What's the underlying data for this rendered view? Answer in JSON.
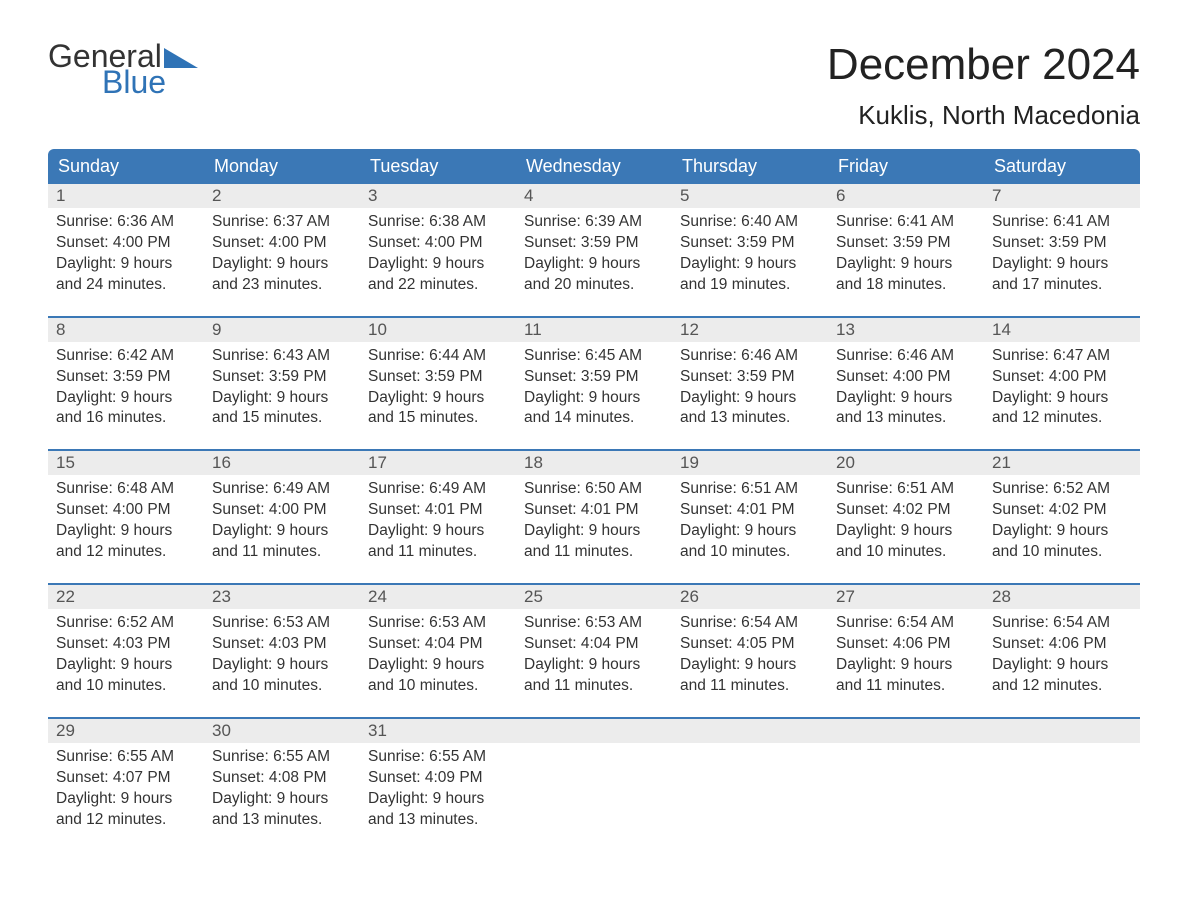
{
  "brand": {
    "word1": "General",
    "word2": "Blue",
    "accent_color": "#2f73b6"
  },
  "title": {
    "month": "December 2024",
    "location": "Kuklis, North Macedonia"
  },
  "colors": {
    "header_bg": "#3b78b6",
    "header_text": "#ffffff",
    "daynum_bg": "#ececec",
    "daynum_text": "#555555",
    "body_text": "#333333",
    "week_border": "#3b78b6",
    "background": "#ffffff"
  },
  "day_names": [
    "Sunday",
    "Monday",
    "Tuesday",
    "Wednesday",
    "Thursday",
    "Friday",
    "Saturday"
  ],
  "labels": {
    "sunrise": "Sunrise:",
    "sunset": "Sunset:",
    "daylight": "Daylight:"
  },
  "fonts": {
    "title_size_pt": 33,
    "location_size_pt": 20,
    "header_size_pt": 14,
    "body_size_pt": 12
  },
  "weeks": [
    [
      {
        "num": "1",
        "sunrise": "6:36 AM",
        "sunset": "4:00 PM",
        "daylight": "9 hours and 24 minutes."
      },
      {
        "num": "2",
        "sunrise": "6:37 AM",
        "sunset": "4:00 PM",
        "daylight": "9 hours and 23 minutes."
      },
      {
        "num": "3",
        "sunrise": "6:38 AM",
        "sunset": "4:00 PM",
        "daylight": "9 hours and 22 minutes."
      },
      {
        "num": "4",
        "sunrise": "6:39 AM",
        "sunset": "3:59 PM",
        "daylight": "9 hours and 20 minutes."
      },
      {
        "num": "5",
        "sunrise": "6:40 AM",
        "sunset": "3:59 PM",
        "daylight": "9 hours and 19 minutes."
      },
      {
        "num": "6",
        "sunrise": "6:41 AM",
        "sunset": "3:59 PM",
        "daylight": "9 hours and 18 minutes."
      },
      {
        "num": "7",
        "sunrise": "6:41 AM",
        "sunset": "3:59 PM",
        "daylight": "9 hours and 17 minutes."
      }
    ],
    [
      {
        "num": "8",
        "sunrise": "6:42 AM",
        "sunset": "3:59 PM",
        "daylight": "9 hours and 16 minutes."
      },
      {
        "num": "9",
        "sunrise": "6:43 AM",
        "sunset": "3:59 PM",
        "daylight": "9 hours and 15 minutes."
      },
      {
        "num": "10",
        "sunrise": "6:44 AM",
        "sunset": "3:59 PM",
        "daylight": "9 hours and 15 minutes."
      },
      {
        "num": "11",
        "sunrise": "6:45 AM",
        "sunset": "3:59 PM",
        "daylight": "9 hours and 14 minutes."
      },
      {
        "num": "12",
        "sunrise": "6:46 AM",
        "sunset": "3:59 PM",
        "daylight": "9 hours and 13 minutes."
      },
      {
        "num": "13",
        "sunrise": "6:46 AM",
        "sunset": "4:00 PM",
        "daylight": "9 hours and 13 minutes."
      },
      {
        "num": "14",
        "sunrise": "6:47 AM",
        "sunset": "4:00 PM",
        "daylight": "9 hours and 12 minutes."
      }
    ],
    [
      {
        "num": "15",
        "sunrise": "6:48 AM",
        "sunset": "4:00 PM",
        "daylight": "9 hours and 12 minutes."
      },
      {
        "num": "16",
        "sunrise": "6:49 AM",
        "sunset": "4:00 PM",
        "daylight": "9 hours and 11 minutes."
      },
      {
        "num": "17",
        "sunrise": "6:49 AM",
        "sunset": "4:01 PM",
        "daylight": "9 hours and 11 minutes."
      },
      {
        "num": "18",
        "sunrise": "6:50 AM",
        "sunset": "4:01 PM",
        "daylight": "9 hours and 11 minutes."
      },
      {
        "num": "19",
        "sunrise": "6:51 AM",
        "sunset": "4:01 PM",
        "daylight": "9 hours and 10 minutes."
      },
      {
        "num": "20",
        "sunrise": "6:51 AM",
        "sunset": "4:02 PM",
        "daylight": "9 hours and 10 minutes."
      },
      {
        "num": "21",
        "sunrise": "6:52 AM",
        "sunset": "4:02 PM",
        "daylight": "9 hours and 10 minutes."
      }
    ],
    [
      {
        "num": "22",
        "sunrise": "6:52 AM",
        "sunset": "4:03 PM",
        "daylight": "9 hours and 10 minutes."
      },
      {
        "num": "23",
        "sunrise": "6:53 AM",
        "sunset": "4:03 PM",
        "daylight": "9 hours and 10 minutes."
      },
      {
        "num": "24",
        "sunrise": "6:53 AM",
        "sunset": "4:04 PM",
        "daylight": "9 hours and 10 minutes."
      },
      {
        "num": "25",
        "sunrise": "6:53 AM",
        "sunset": "4:04 PM",
        "daylight": "9 hours and 11 minutes."
      },
      {
        "num": "26",
        "sunrise": "6:54 AM",
        "sunset": "4:05 PM",
        "daylight": "9 hours and 11 minutes."
      },
      {
        "num": "27",
        "sunrise": "6:54 AM",
        "sunset": "4:06 PM",
        "daylight": "9 hours and 11 minutes."
      },
      {
        "num": "28",
        "sunrise": "6:54 AM",
        "sunset": "4:06 PM",
        "daylight": "9 hours and 12 minutes."
      }
    ],
    [
      {
        "num": "29",
        "sunrise": "6:55 AM",
        "sunset": "4:07 PM",
        "daylight": "9 hours and 12 minutes."
      },
      {
        "num": "30",
        "sunrise": "6:55 AM",
        "sunset": "4:08 PM",
        "daylight": "9 hours and 13 minutes."
      },
      {
        "num": "31",
        "sunrise": "6:55 AM",
        "sunset": "4:09 PM",
        "daylight": "9 hours and 13 minutes."
      },
      null,
      null,
      null,
      null
    ]
  ]
}
